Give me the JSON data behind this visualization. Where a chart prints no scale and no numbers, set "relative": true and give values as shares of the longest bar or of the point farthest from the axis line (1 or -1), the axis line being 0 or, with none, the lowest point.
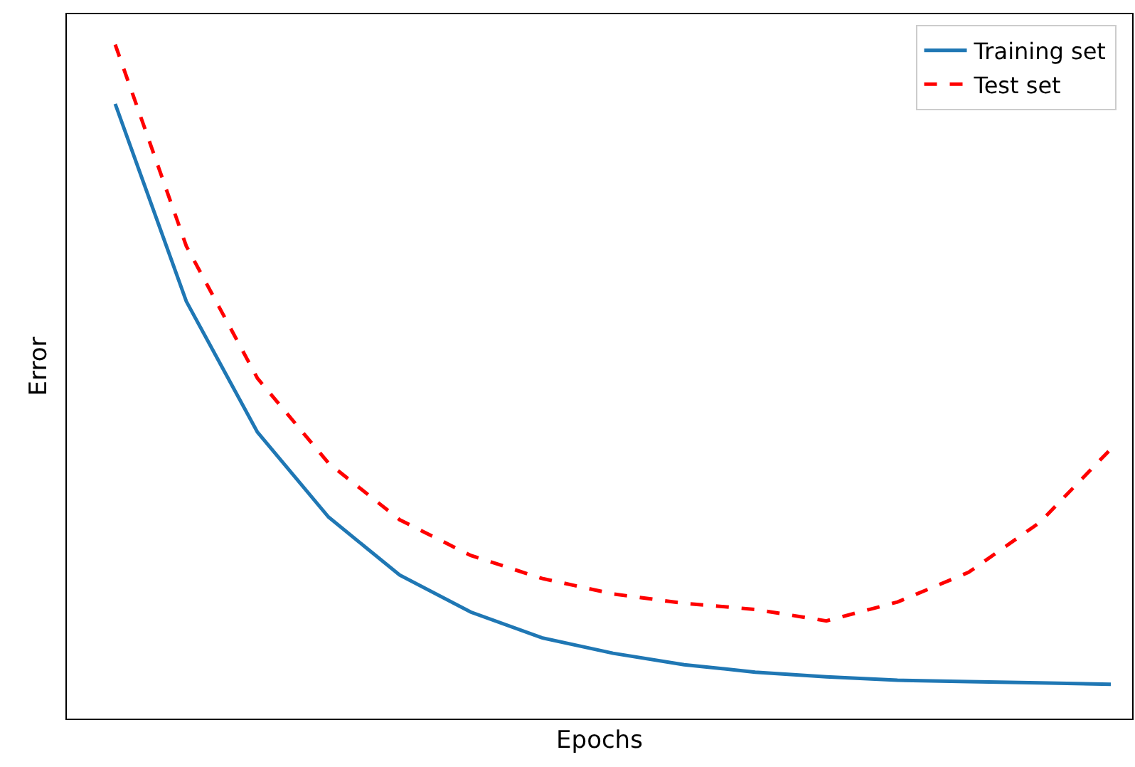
{
  "chart_data": {
    "type": "line",
    "xlabel": "Epochs",
    "ylabel": "Error",
    "relative": true,
    "categories": [
      null,
      null,
      null,
      null,
      null,
      null,
      null,
      null,
      null,
      null,
      null,
      null,
      null,
      null,
      null
    ],
    "series": [
      {
        "name": "Training set",
        "color": "#1f77b4",
        "line_style": "solid",
        "values": [
          0.912,
          0.619,
          0.425,
          0.299,
          0.213,
          0.158,
          0.12,
          0.097,
          0.08,
          0.069,
          0.062,
          0.057,
          0.055,
          0.053,
          0.051
        ]
      },
      {
        "name": "Test set",
        "color": "#ff0000",
        "line_style": "dashed",
        "values": [
          1.0,
          0.701,
          0.505,
          0.379,
          0.295,
          0.242,
          0.208,
          0.185,
          0.171,
          0.162,
          0.145,
          0.173,
          0.217,
          0.291,
          0.4
        ]
      }
    ],
    "legend": "top right",
    "grid": false,
    "marker": "none"
  }
}
